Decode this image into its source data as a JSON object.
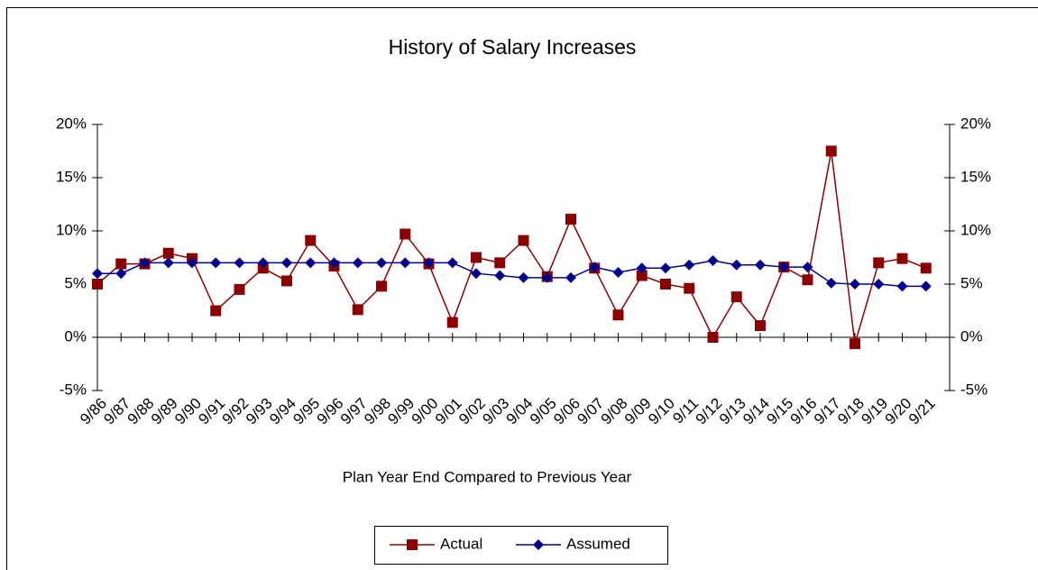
{
  "chart_data": {
    "type": "line",
    "title": "History of Salary Increases",
    "x_label": "Plan Year End Compared to Previous Year",
    "categories": [
      "9/86",
      "9/87",
      "9/88",
      "9/89",
      "9/90",
      "9/91",
      "9/92",
      "9/93",
      "9/94",
      "9/95",
      "9/96",
      "9/97",
      "9/98",
      "9/99",
      "9/00",
      "9/01",
      "9/02",
      "9/03",
      "9/04",
      "9/05",
      "9/06",
      "9/07",
      "9/08",
      "9/09",
      "9/10",
      "9/11",
      "9/12",
      "9/13",
      "9/14",
      "9/15",
      "9/16",
      "9/17",
      "9/18",
      "9/19",
      "9/20",
      "9/21"
    ],
    "series": [
      {
        "name": "Actual",
        "color": "#8b0000",
        "marker": "square",
        "values": [
          5.0,
          6.9,
          6.9,
          7.9,
          7.4,
          2.5,
          4.5,
          6.5,
          5.3,
          9.1,
          6.7,
          2.6,
          4.8,
          9.7,
          6.9,
          1.4,
          7.5,
          7.0,
          9.1,
          5.7,
          11.1,
          6.5,
          2.1,
          5.8,
          5.0,
          4.6,
          0.0,
          3.8,
          1.1,
          6.6,
          5.4,
          17.5,
          -0.6,
          7.0,
          7.4,
          6.5
        ]
      },
      {
        "name": "Assumed",
        "color": "#00008b",
        "marker": "diamond",
        "values": [
          6.0,
          6.0,
          7.0,
          7.0,
          7.0,
          7.0,
          7.0,
          7.0,
          7.0,
          7.0,
          7.0,
          7.0,
          7.0,
          7.0,
          7.0,
          7.0,
          6.0,
          5.8,
          5.6,
          5.6,
          5.6,
          6.6,
          6.1,
          6.5,
          6.5,
          6.8,
          7.2,
          6.8,
          6.8,
          6.6,
          6.6,
          5.1,
          5.0,
          5.0,
          4.8,
          4.8
        ]
      }
    ],
    "ylim": [
      -5,
      20
    ],
    "yticks": [
      {
        "value": -5,
        "label": "-5%"
      },
      {
        "value": 0,
        "label": "0%"
      },
      {
        "value": 5,
        "label": "5%"
      },
      {
        "value": 10,
        "label": "10%"
      },
      {
        "value": 15,
        "label": "15%"
      },
      {
        "value": 20,
        "label": "20%"
      }
    ],
    "y2lim": [
      -5,
      20
    ],
    "y2ticks": [
      {
        "value": -5,
        "label": "-5%"
      },
      {
        "value": 0,
        "label": "0%"
      },
      {
        "value": 5,
        "label": "5%"
      },
      {
        "value": 10,
        "label": "10%"
      },
      {
        "value": 15,
        "label": "15%"
      },
      {
        "value": 20,
        "label": "20%"
      }
    ],
    "legend": "bottom"
  }
}
